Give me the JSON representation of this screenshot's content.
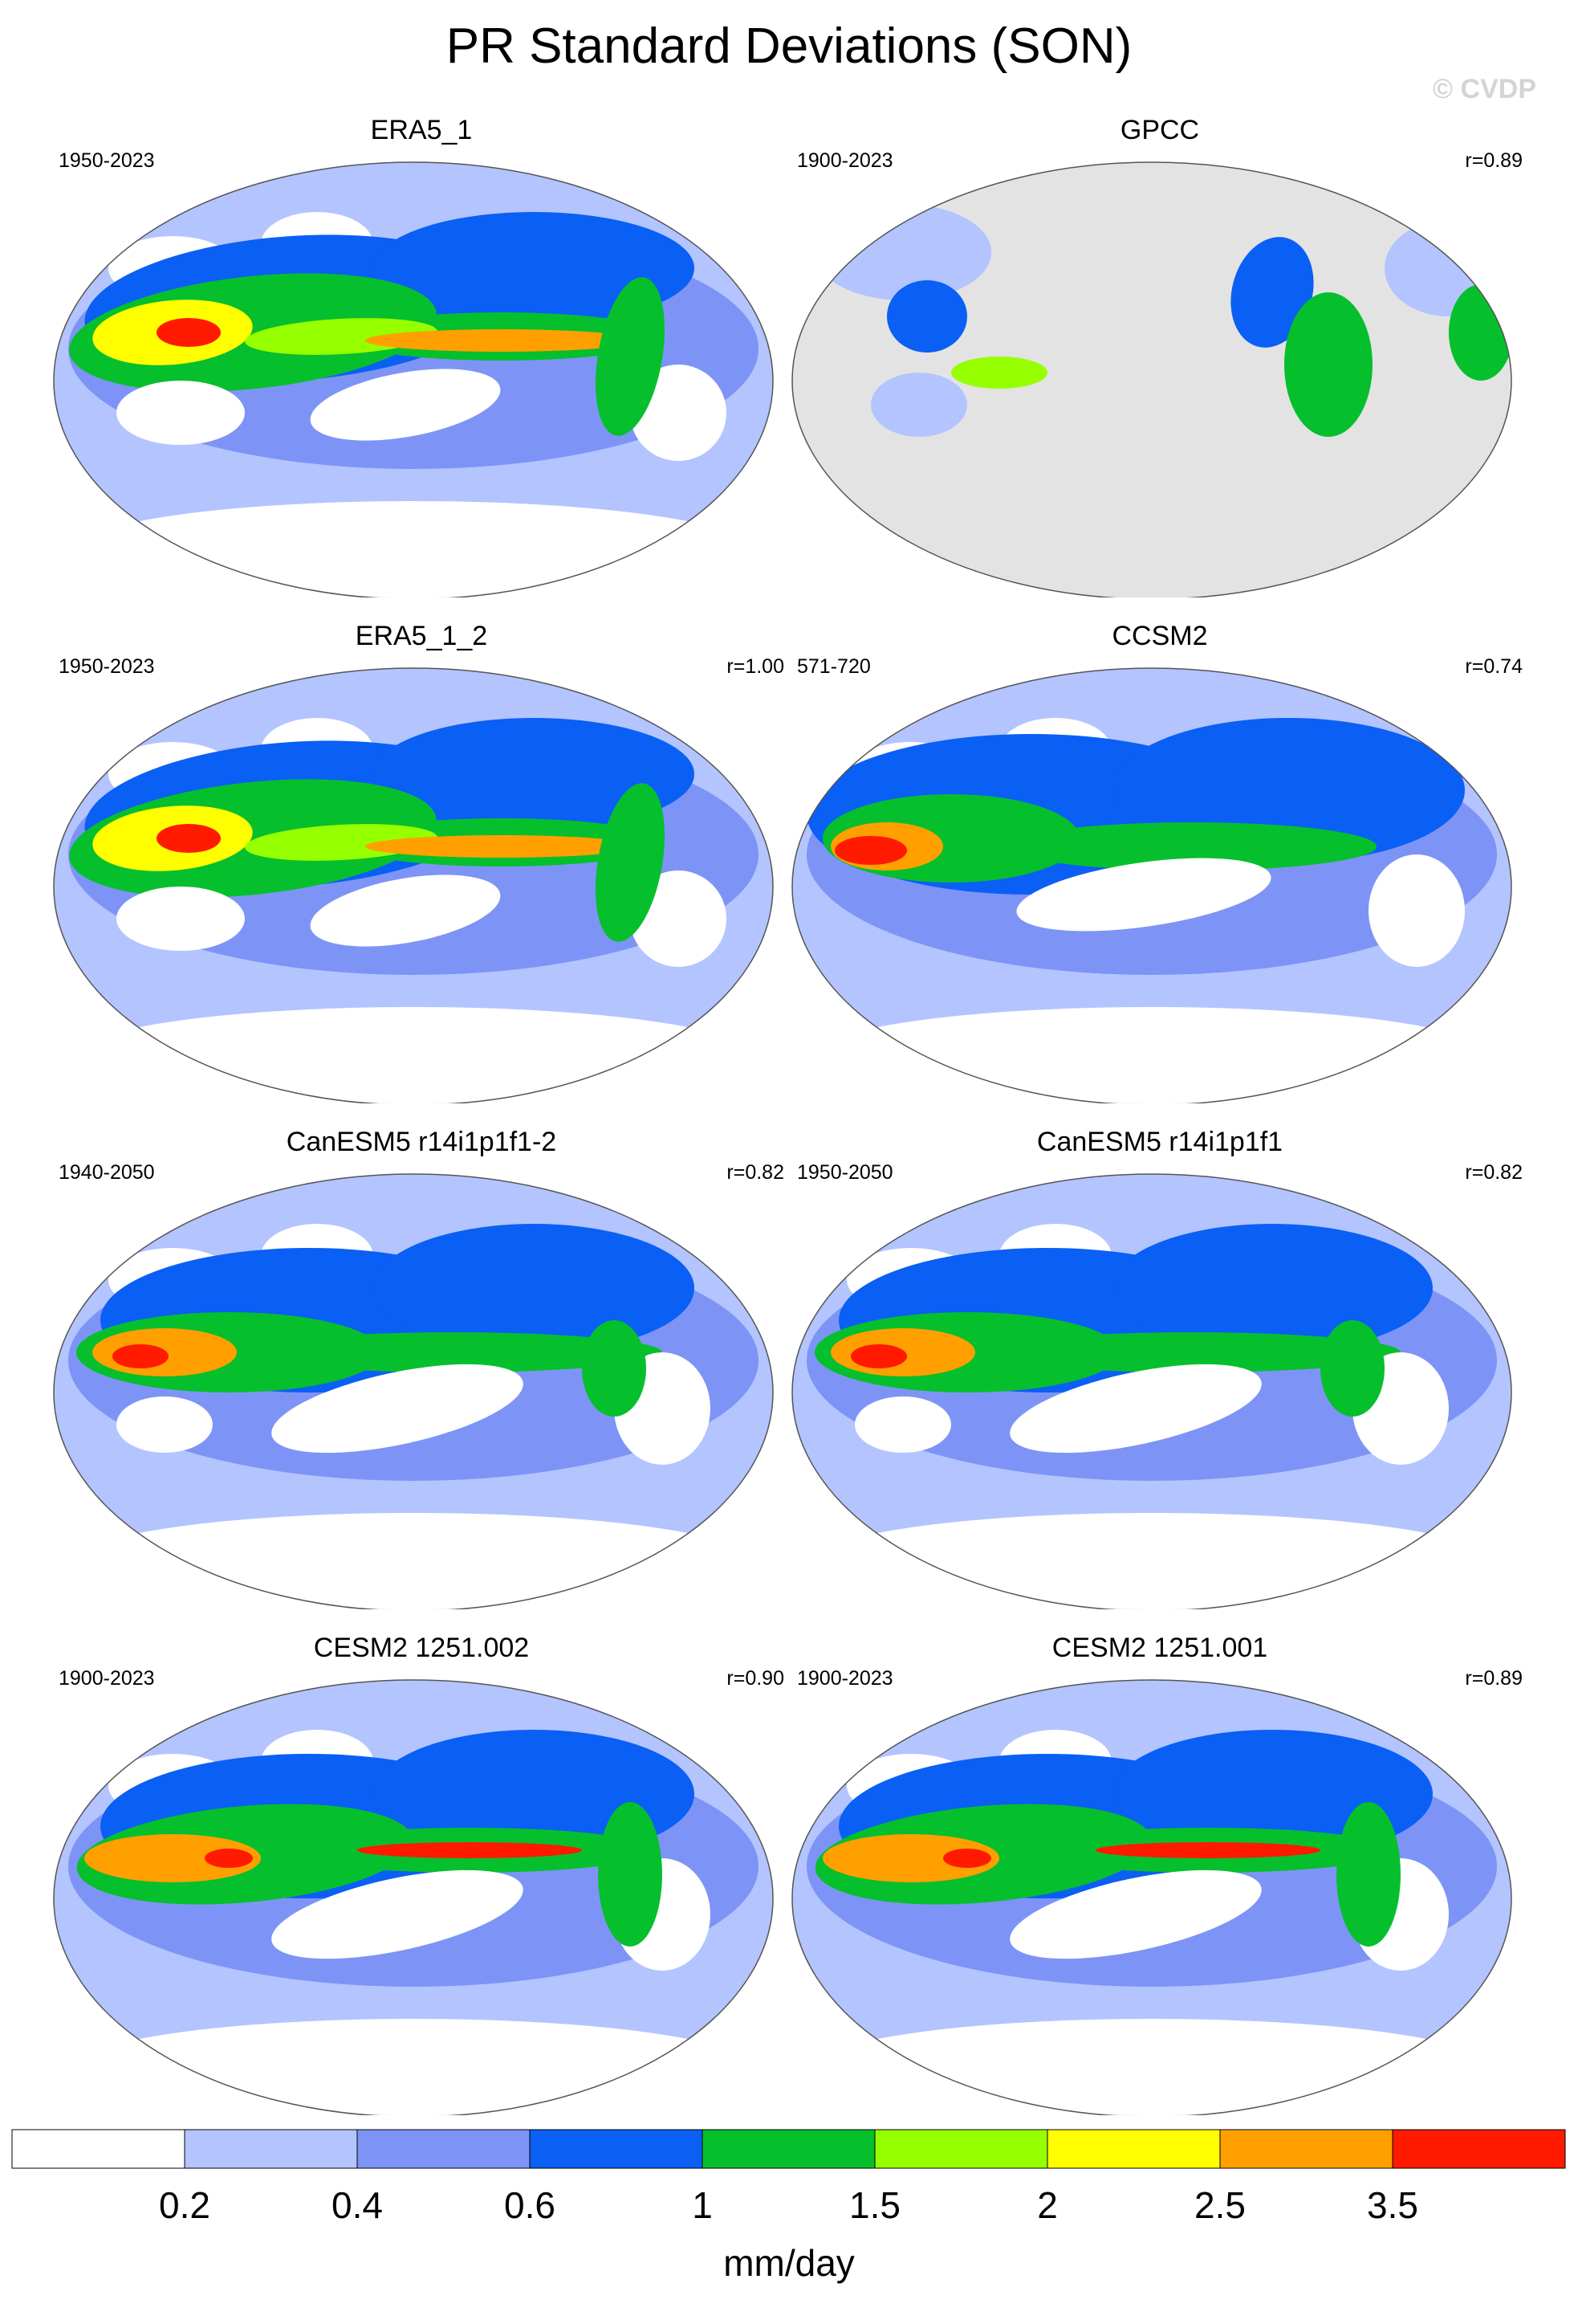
{
  "title": "PR Standard Deviations (SON)",
  "watermark": "© CVDP",
  "panels": [
    {
      "name": "ERA5_1",
      "years": "1950-2023",
      "corr": "",
      "kind": "reanalysis"
    },
    {
      "name": "GPCC",
      "years": "1900-2023",
      "corr": "r=0.89",
      "kind": "land"
    },
    {
      "name": "ERA5_1_2",
      "years": "1950-2023",
      "corr": "r=1.00",
      "kind": "reanalysis"
    },
    {
      "name": "CCSM2",
      "years": "571-720",
      "corr": "r=0.74",
      "kind": "ccsm"
    },
    {
      "name": "CanESM5 r14i1p1f1-2",
      "years": "1940-2050",
      "corr": "r=0.82",
      "kind": "canesm"
    },
    {
      "name": "CanESM5 r14i1p1f1",
      "years": "1950-2050",
      "corr": "r=0.82",
      "kind": "canesm"
    },
    {
      "name": "CESM2 1251.002",
      "years": "1900-2023",
      "corr": "r=0.90",
      "kind": "cesm"
    },
    {
      "name": "CESM2 1251.001",
      "years": "1900-2023",
      "corr": "r=0.89",
      "kind": "cesm"
    }
  ],
  "colorbar": {
    "colors": [
      "#ffffff",
      "#b3c4ff",
      "#7d94f6",
      "#0a5ff5",
      "#06bf2d",
      "#96ff00",
      "#ffff00",
      "#ffa000",
      "#ff1a00"
    ],
    "labels": [
      "0.2",
      "0.4",
      "0.6",
      "1",
      "1.5",
      "2",
      "2.5",
      "3.5"
    ],
    "units": "mm/day"
  },
  "missing_color": "#e3e3e3"
}
